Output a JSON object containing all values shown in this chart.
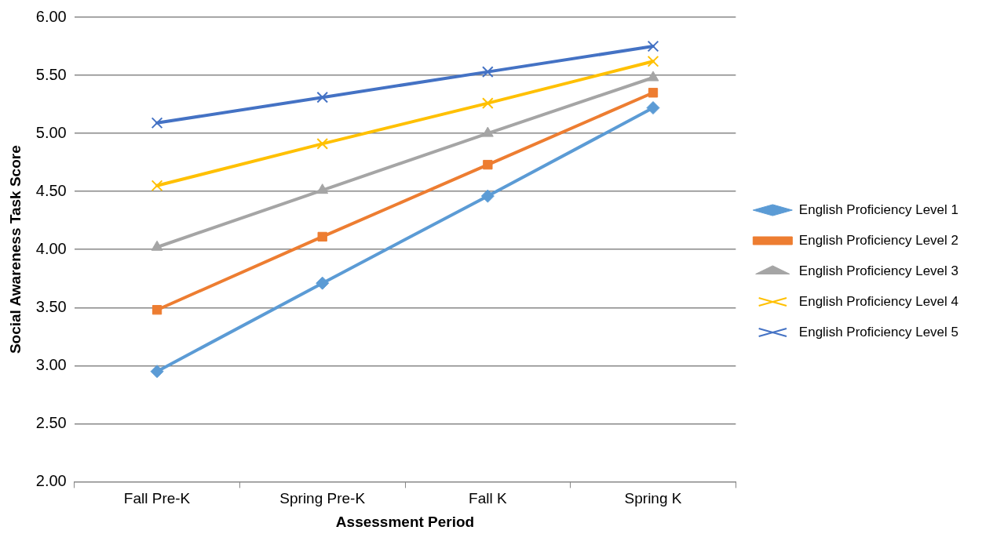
{
  "chart_data": {
    "type": "line",
    "xlabel": "Assessment Period",
    "ylabel": "Social Awareness Task Score",
    "categories": [
      "Fall Pre-K",
      "Spring Pre-K",
      "Fall K",
      "Spring K"
    ],
    "series": [
      {
        "name": "English Proficiency Level 1",
        "color": "#5b9bd5",
        "marker": "diamond",
        "values": [
          2.95,
          3.71,
          4.46,
          5.22
        ]
      },
      {
        "name": "English Proficiency Level 2",
        "color": "#ed7d31",
        "marker": "square",
        "values": [
          3.48,
          4.11,
          4.73,
          5.35
        ]
      },
      {
        "name": "English Proficiency Level 3",
        "color": "#a5a5a5",
        "marker": "triangle",
        "values": [
          4.02,
          4.51,
          5.0,
          5.48
        ]
      },
      {
        "name": "English Proficiency Level 4",
        "color": "#ffc000",
        "marker": "cross",
        "values": [
          4.55,
          4.91,
          5.26,
          5.62
        ]
      },
      {
        "name": "English Proficiency Level 5",
        "color": "#4472c4",
        "marker": "cross",
        "values": [
          5.09,
          5.31,
          5.53,
          5.75
        ]
      }
    ],
    "ylim": [
      2,
      6
    ],
    "yticks": [
      {
        "value": 2,
        "label": "2.00"
      },
      {
        "value": 2.5,
        "label": "2.50"
      },
      {
        "value": 3,
        "label": "3.00"
      },
      {
        "value": 3.5,
        "label": "3.50"
      },
      {
        "value": 4,
        "label": "4.00"
      },
      {
        "value": 4.5,
        "label": "4.50"
      },
      {
        "value": 5,
        "label": "5.00"
      },
      {
        "value": 5.5,
        "label": "5.50"
      },
      {
        "value": 6,
        "label": "6.00"
      }
    ],
    "grid": "y",
    "legend": "right",
    "line_style": "solid"
  }
}
